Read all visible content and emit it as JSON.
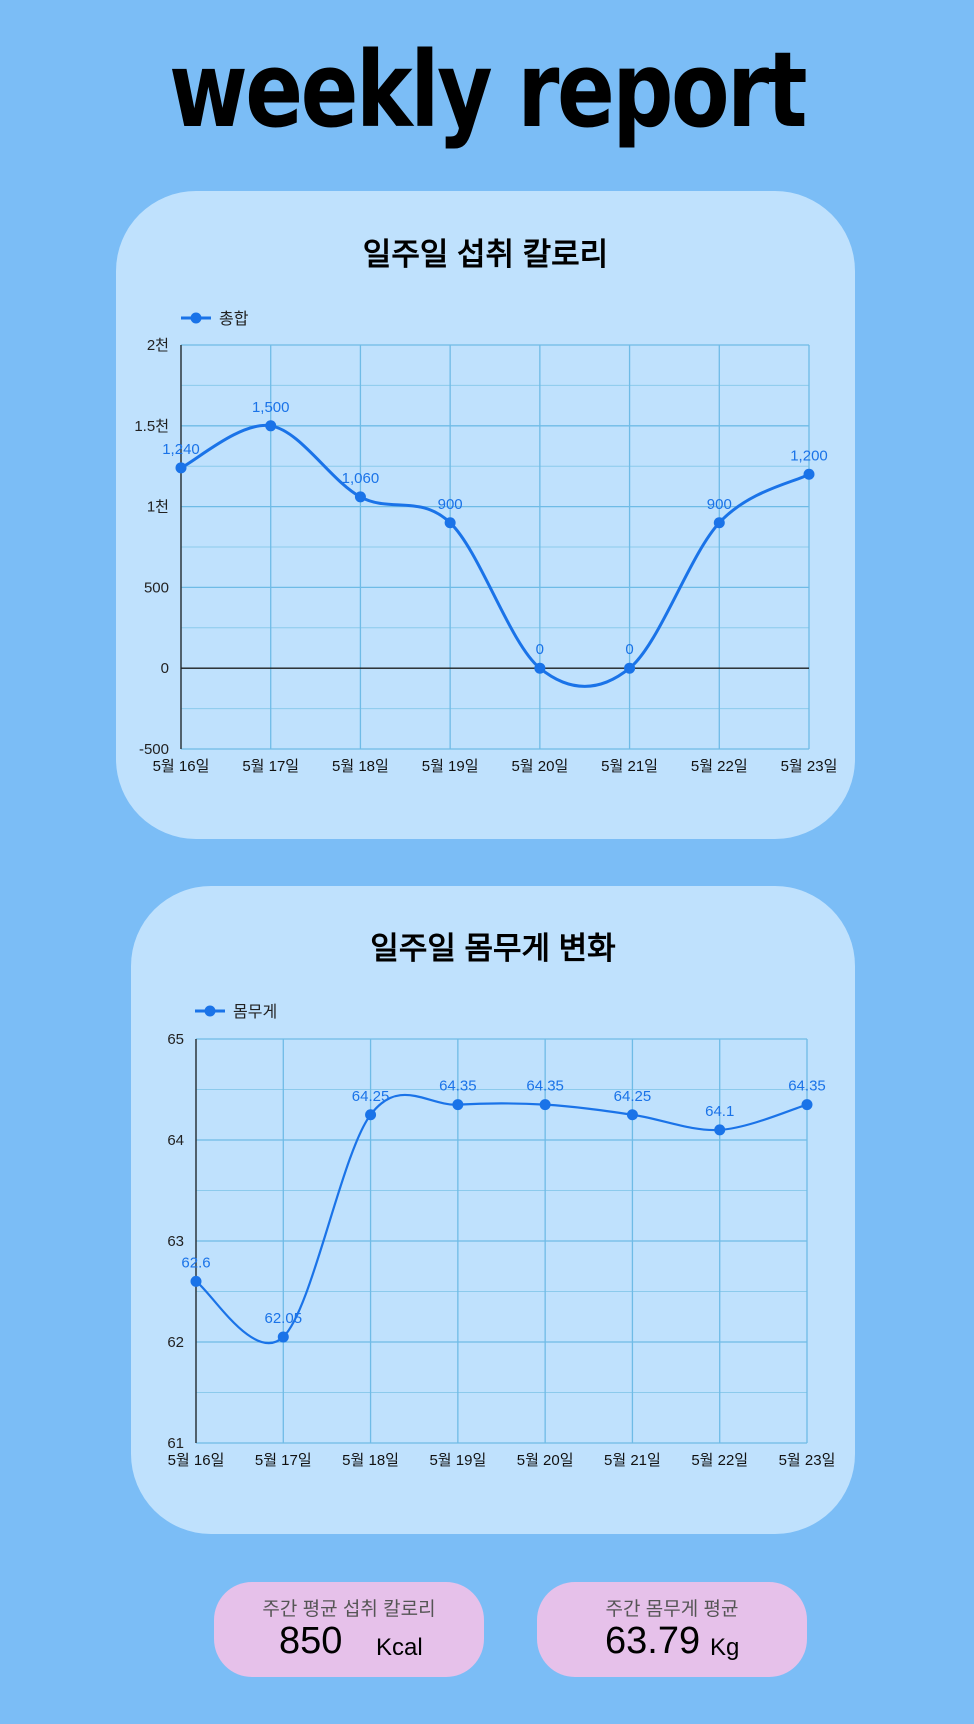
{
  "page": {
    "title": "weekly report",
    "background": "#7bbdf6",
    "card_color": "#bfe1fd",
    "summary_color": "#e6c1ea"
  },
  "chart_data": [
    {
      "type": "line",
      "title": "일주일 섭취 칼로리",
      "categories": [
        "5월 16일",
        "5월 17일",
        "5월 18일",
        "5월 19일",
        "5월 20일",
        "5월 21일",
        "5월 22일",
        "5월 23일"
      ],
      "series": [
        {
          "name": "총합",
          "values": [
            1240,
            1500,
            1060,
            900,
            0,
            0,
            900,
            1200
          ],
          "labels": [
            "1,240",
            "1,500",
            "1,060",
            "900",
            "0",
            "0",
            "900",
            "1,200"
          ],
          "color": "#1a73e8"
        }
      ],
      "ylim": [
        -500,
        2000
      ],
      "yticks": [
        -500,
        0,
        500,
        1000,
        1500,
        2000
      ],
      "ytick_labels": [
        "-500",
        "0",
        "500",
        "1천",
        "1.5천",
        "2천"
      ],
      "grid": true,
      "smooth": true,
      "legend": "top-left"
    },
    {
      "type": "line",
      "title": "일주일 몸무게 변화",
      "categories": [
        "5월 16일",
        "5월 17일",
        "5월 18일",
        "5월 19일",
        "5월 20일",
        "5월 21일",
        "5월 22일",
        "5월 23일"
      ],
      "series": [
        {
          "name": "몸무게",
          "values": [
            62.6,
            62.05,
            64.25,
            64.35,
            64.35,
            64.25,
            64.1,
            64.35
          ],
          "labels": [
            "62.6",
            "62.05",
            "64.25",
            "64.35",
            "64.35",
            "64.25",
            "64.1",
            "64.35"
          ],
          "color": "#1a73e8"
        }
      ],
      "ylim": [
        61,
        65
      ],
      "yticks": [
        61,
        62,
        63,
        64,
        65
      ],
      "ytick_labels": [
        "61",
        "62",
        "63",
        "64",
        "65"
      ],
      "grid": true,
      "smooth": true,
      "legend": "top-left"
    }
  ],
  "summary": {
    "calories": {
      "label": "주간 평균 섭취 칼로리",
      "value": "850",
      "unit": "Kcal"
    },
    "weight": {
      "label": "주간 몸무게 평균",
      "value": "63.79",
      "unit": "Kg"
    }
  }
}
